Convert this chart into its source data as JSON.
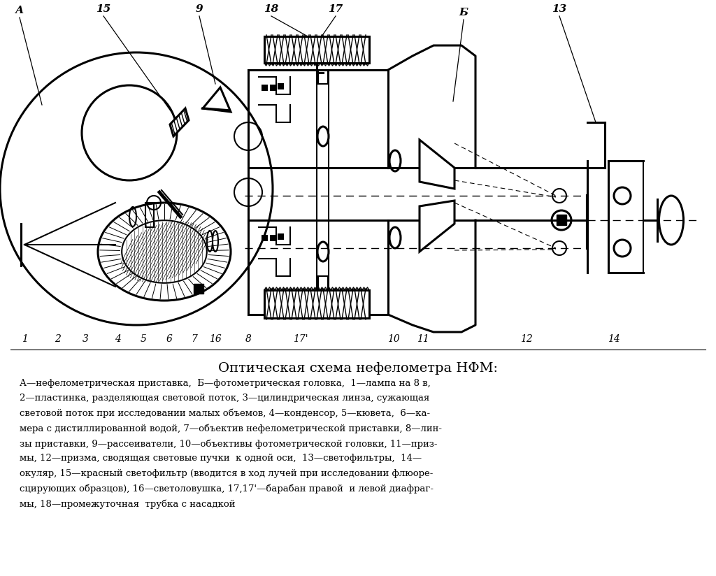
{
  "title": "Оптическая схема нефелометра НФМ:",
  "caption_lines": [
    "А—нефелометрическая приставка,  Б—фотометрическая головка,  1—лампа на 8 в,",
    "2—пластинка, разделяющая световой поток, 3—цилиндрическая линза, сужающая",
    "световой поток при исследовании малых объемов, 4—конденсор, 5—кювета,  6—ка-",
    "мера с дистиллированной водой, 7—объектив нефелометрической приставки, 8—лин-",
    "зы приставки, 9—рассеиватели, 10—объективы фотометрической головки, 11—приз-",
    "мы, 12—призма, сводящая световые пучки  к одной оси,  13—светофильтры,  14—",
    "окуляр, 15—красный светофильтр (вводится в ход лучей при исследовании флюоре-",
    "сцирующих образцов), 16—светоловушка, 17,17'—барабан правой  и левой диафраг-",
    "мы, 18—промежуточная  трубка с насадкой"
  ],
  "bg_color": "#ffffff",
  "fg_color": "#000000"
}
